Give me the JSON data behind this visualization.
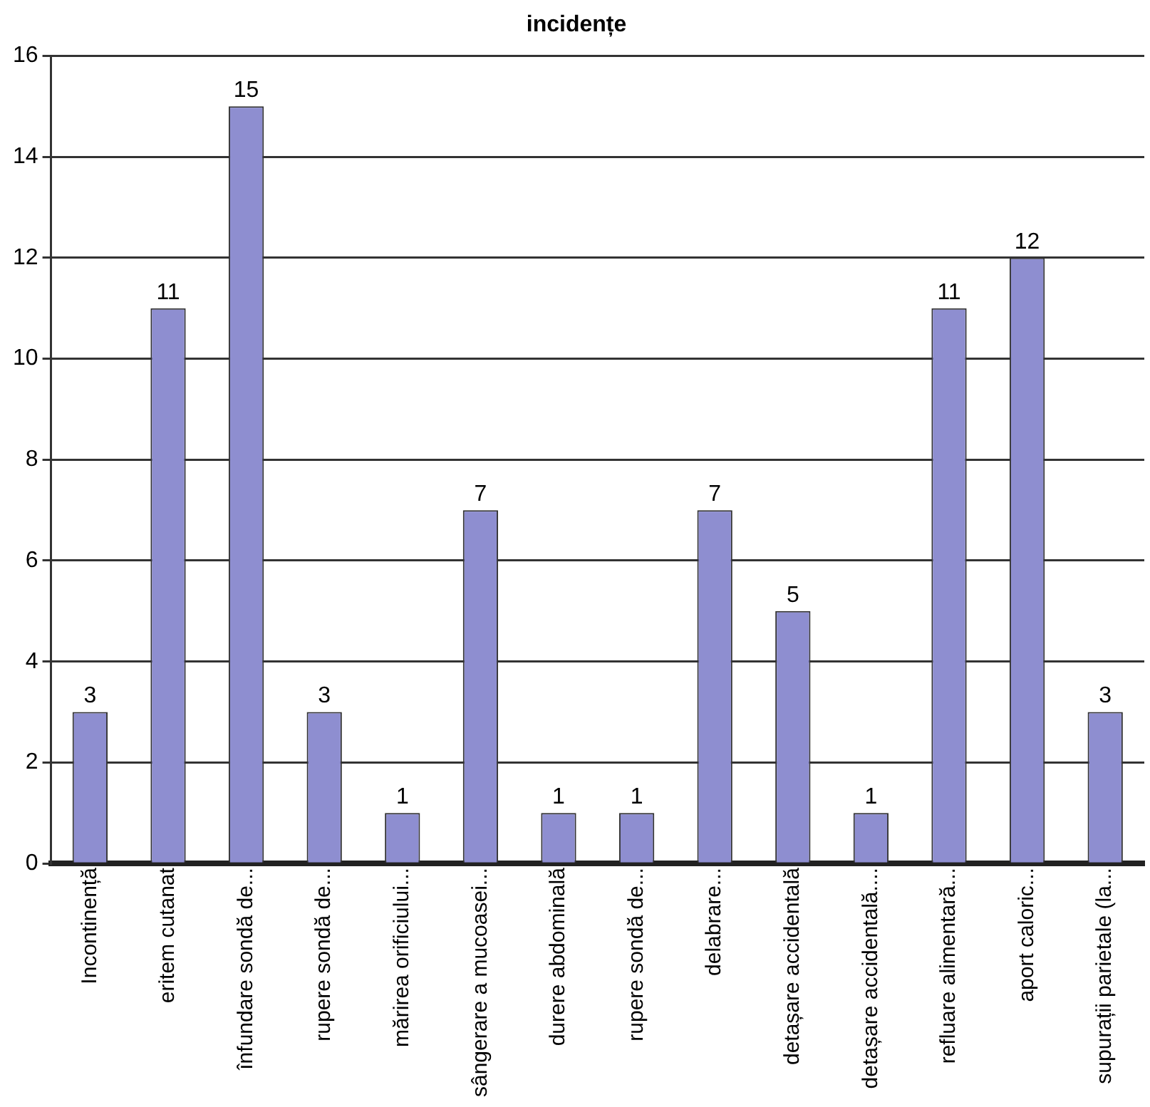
{
  "chart_data": {
    "type": "bar",
    "title": "incidențe",
    "categories": [
      "Incontinență",
      "eritem cutanat",
      "înfundare sondă de...",
      "rupere sondă de...",
      "mărirea orificiului...",
      "sângerare a mucoasei...",
      "durere abdominală",
      "rupere sondă de...",
      "delabrare...",
      "detașare accidentală",
      "detașare accidentală....",
      "refluare alimentară...",
      "aport caloric...",
      "supurații parietale (la..."
    ],
    "values": [
      3,
      11,
      15,
      3,
      1,
      7,
      1,
      1,
      7,
      5,
      1,
      11,
      12,
      3
    ],
    "color": "#8e8ed0",
    "ylim": [
      0,
      16
    ],
    "yticks": [
      0,
      2,
      4,
      6,
      8,
      10,
      12,
      14,
      16
    ],
    "grid": "y",
    "data_labels": true
  }
}
